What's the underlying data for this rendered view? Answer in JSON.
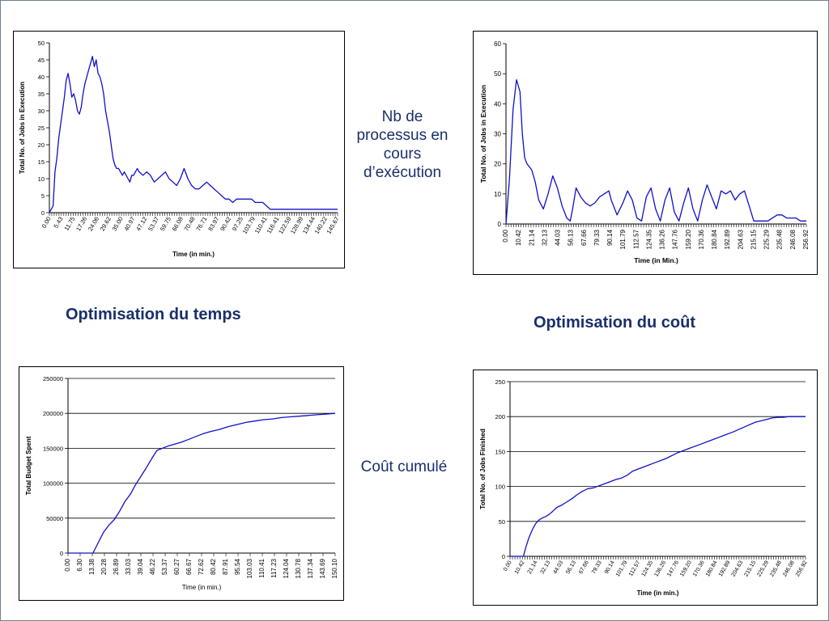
{
  "captions": {
    "time": "Optimisation du temps",
    "cost": "Optimisation du coût",
    "jobs_note": "Nb de processus en cours d’exécution",
    "budget_note": "Coût cumulé"
  },
  "colors": {
    "series": "#1010c8",
    "grid": "#000000",
    "axis": "#000000"
  },
  "chart_data": [
    {
      "id": "time-jobs",
      "type": "line",
      "title": "",
      "xlabel": "Time (in min.)",
      "ylabel": "Total No. of Jobs in Execution",
      "ylim": [
        0,
        50
      ],
      "yticks": [
        0,
        5,
        10,
        15,
        20,
        25,
        30,
        35,
        40,
        45,
        50
      ],
      "xlim": [
        0,
        154
      ],
      "xtick_labels": [
        "0.00",
        "5.43",
        "11.75",
        "17.26",
        "24.06",
        "29.62",
        "35.00",
        "40.97",
        "47.12",
        "53.37",
        "59.75",
        "66.08",
        "70.48",
        "76.71",
        "83.97",
        "90.42",
        "97.25",
        "103.79",
        "110.41",
        "116.41",
        "122.59",
        "128.99",
        "134.44",
        "140.22",
        "145.67"
      ],
      "grid": false,
      "x": [
        0,
        2,
        3,
        4,
        5,
        6,
        7,
        8,
        9,
        10,
        11,
        12,
        13,
        14,
        15,
        16,
        17,
        18,
        19,
        20,
        21,
        22,
        23,
        24,
        25,
        26,
        27,
        28,
        29,
        30,
        31,
        32,
        33,
        34,
        35,
        36,
        37,
        38,
        39,
        40,
        41,
        42,
        43,
        44,
        45,
        46,
        47,
        48,
        50,
        52,
        54,
        56,
        58,
        60,
        62,
        64,
        66,
        68,
        70,
        72,
        74,
        76,
        78,
        80,
        82,
        84,
        86,
        88,
        90,
        92,
        94,
        96,
        98,
        100,
        102,
        104,
        106,
        108,
        110,
        112,
        114,
        116,
        118,
        120,
        122,
        124,
        126,
        128,
        130,
        132,
        134,
        136,
        138,
        140,
        142,
        144,
        146,
        148,
        150,
        154
      ],
      "y": [
        0,
        2,
        12,
        16,
        22,
        26,
        30,
        34,
        39,
        41,
        38,
        34,
        35,
        33,
        30,
        29,
        31,
        35,
        38,
        40,
        42,
        44,
        46,
        43,
        45,
        41,
        40,
        38,
        35,
        30,
        27,
        24,
        20,
        16,
        14,
        13,
        13,
        12,
        11,
        12,
        11,
        10,
        9,
        11,
        11,
        12,
        13,
        12,
        11,
        12,
        11,
        9,
        10,
        11,
        12,
        10,
        9,
        8,
        10,
        13,
        10,
        8,
        7,
        7,
        8,
        9,
        8,
        7,
        6,
        5,
        4,
        4,
        3,
        4,
        4,
        4,
        4,
        4,
        3,
        3,
        3,
        2,
        1,
        1,
        1,
        1,
        1,
        1,
        1,
        1,
        1,
        1,
        1,
        1,
        1,
        1,
        1,
        1,
        1,
        1
      ]
    },
    {
      "id": "cost-jobs",
      "type": "line",
      "title": "",
      "xlabel": "Time (in Min.)",
      "ylabel": "Total No. of Jobs in Execution",
      "ylim": [
        0,
        60
      ],
      "yticks": [
        0,
        10,
        20,
        30,
        40,
        50,
        60
      ],
      "xlim": [
        0,
        256.92
      ],
      "xtick_labels": [
        "0.00",
        "10.42",
        "21.14",
        "32.13",
        "44.03",
        "56.13",
        "67.66",
        "79.33",
        "90.14",
        "101.79",
        "112.57",
        "124.35",
        "136.26",
        "147.76",
        "159.20",
        "170.36",
        "180.84",
        "192.89",
        "204.63",
        "215.15",
        "225.29",
        "235.48",
        "246.08",
        "256.92"
      ],
      "grid": false,
      "x": [
        0,
        3,
        6,
        9,
        12,
        14,
        16,
        18,
        20,
        22,
        25,
        28,
        32,
        36,
        40,
        44,
        48,
        52,
        55,
        57,
        60,
        64,
        68,
        72,
        76,
        80,
        84,
        88,
        90,
        95,
        100,
        104,
        108,
        112,
        116,
        120,
        124,
        128,
        132,
        136,
        140,
        144,
        148,
        152,
        156,
        160,
        164,
        168,
        172,
        176,
        180,
        184,
        188,
        192,
        196,
        200,
        204,
        208,
        212,
        216,
        220,
        224,
        228,
        232,
        236,
        240,
        244,
        248,
        252,
        256.92
      ],
      "y": [
        0,
        15,
        38,
        48,
        44,
        30,
        22,
        20,
        19,
        18,
        14,
        8,
        5,
        10,
        16,
        12,
        6,
        2,
        1,
        5,
        12,
        9,
        7,
        6,
        7,
        9,
        10,
        11,
        8,
        3,
        7,
        11,
        8,
        2,
        1,
        9,
        12,
        5,
        1,
        8,
        12,
        4,
        1,
        7,
        12,
        5,
        1,
        8,
        13,
        9,
        5,
        11,
        10,
        11,
        8,
        10,
        11,
        6,
        1,
        1,
        1,
        1,
        2,
        3,
        3,
        2,
        2,
        2,
        1,
        1
      ]
    },
    {
      "id": "time-budget",
      "type": "line",
      "title": "",
      "xlabel": "Time (in min.)",
      "ylabel": "Total Budget Spent",
      "ylim": [
        0,
        250000
      ],
      "yticks": [
        0,
        50000,
        100000,
        150000,
        200000,
        250000
      ],
      "xlim": [
        0,
        150.1
      ],
      "xtick_labels": [
        "0.00",
        "6.30",
        "13.38",
        "20.28",
        "26.89",
        "33.03",
        "39.04",
        "46.22",
        "53.37",
        "60.27",
        "66.67",
        "72.62",
        "80.42",
        "87.91",
        "95.54",
        "103.03",
        "110.41",
        "117.23",
        "124.04",
        "130.78",
        "137.34",
        "143.69",
        "150.10"
      ],
      "grid": true,
      "x": [
        0,
        8,
        11,
        14,
        17,
        20,
        23,
        26,
        29,
        32,
        35,
        38,
        41,
        44,
        47,
        50,
        53,
        56,
        60,
        64,
        68,
        72,
        76,
        80,
        85,
        90,
        95,
        100,
        105,
        110,
        115,
        120,
        125,
        130,
        135,
        140,
        145,
        150.1
      ],
      "y": [
        0,
        0,
        0,
        0,
        15000,
        30000,
        40000,
        48000,
        60000,
        74000,
        84000,
        98000,
        110000,
        122000,
        135000,
        147000,
        150000,
        153000,
        156000,
        159000,
        163000,
        167000,
        171000,
        174000,
        177000,
        181000,
        184000,
        187000,
        189000,
        191000,
        192000,
        194000,
        195000,
        196000,
        197000,
        198000,
        199000,
        200000
      ]
    },
    {
      "id": "cost-finished",
      "type": "line",
      "title": "",
      "xlabel": "Time (in min.)",
      "ylabel": "Total No. of Jobs Finished",
      "ylim": [
        0,
        250
      ],
      "yticks": [
        0,
        50,
        100,
        150,
        200,
        250
      ],
      "xlim": [
        0,
        265
      ],
      "xtick_labels": [
        "0.00",
        "10.42",
        "21.14",
        "32.13",
        "44.03",
        "56.13",
        "67.66",
        "79.33",
        "90.14",
        "101.79",
        "112.57",
        "124.35",
        "136.26",
        "147.76",
        "159.20",
        "170.36",
        "180.84",
        "192.89",
        "204.63",
        "215.15",
        "225.29",
        "235.48",
        "246.08",
        "256.92"
      ],
      "grid": true,
      "x": [
        0,
        12,
        14,
        17,
        20,
        23,
        26,
        29,
        32,
        35,
        38,
        42,
        46,
        50,
        55,
        60,
        65,
        70,
        75,
        80,
        85,
        90,
        95,
        100,
        105,
        110,
        120,
        130,
        140,
        150,
        160,
        170,
        180,
        190,
        200,
        210,
        220,
        230,
        235,
        240,
        245,
        250,
        255,
        260,
        265
      ],
      "y": [
        0,
        0,
        12,
        27,
        38,
        47,
        52,
        55,
        57,
        60,
        64,
        70,
        73,
        77,
        82,
        88,
        93,
        97,
        98,
        101,
        104,
        107,
        110,
        112,
        116,
        122,
        128,
        134,
        140,
        148,
        154,
        160,
        166,
        172,
        178,
        185,
        192,
        196,
        198,
        199,
        199,
        200,
        200,
        200,
        200
      ]
    }
  ]
}
